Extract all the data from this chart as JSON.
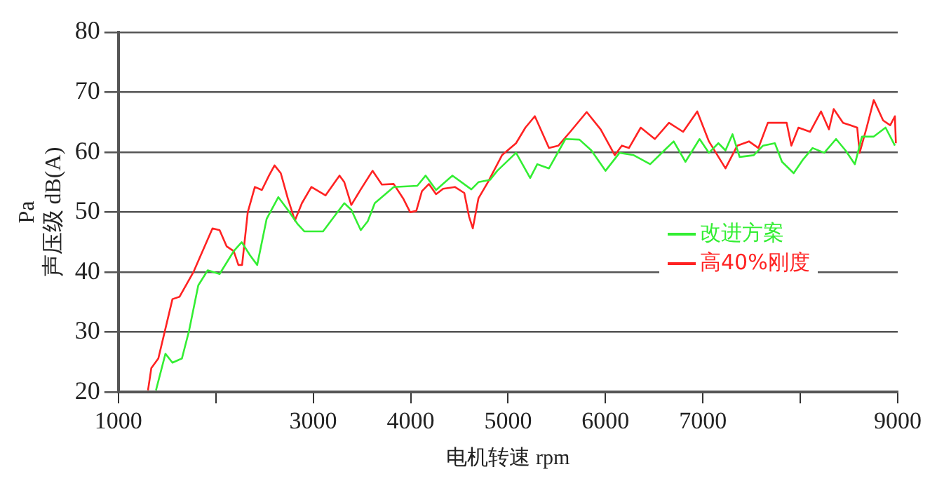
{
  "chart_data": {
    "type": "line",
    "xlabel": "电机转速 rpm",
    "ylabel": "Pa\n声压级 dB(A)",
    "xlim": [
      1000,
      9000
    ],
    "xticks": [
      1000,
      {
        "value": 2000,
        "label": null
      },
      3000,
      4000,
      5000,
      6000,
      7000,
      {
        "value": 8000,
        "label": null
      },
      9000
    ],
    "ylim": [
      20,
      80
    ],
    "yticks": [
      20,
      30,
      40,
      50,
      60,
      70,
      80
    ],
    "grid": "y",
    "legend": "right",
    "marker": "none",
    "line_style": "solid",
    "series": [
      {
        "name": "改进方案",
        "color": "#33ee33",
        "x": [
          1386,
          1483,
          1555,
          1652,
          1725,
          1820,
          1917,
          2039,
          2184,
          2266,
          2352,
          2425,
          2522,
          2642,
          2739,
          2836,
          2908,
          3101,
          3198,
          3319,
          3391,
          3488,
          3560,
          3632,
          3826,
          4068,
          4154,
          4261,
          4429,
          4623,
          4696,
          4816,
          4889,
          5082,
          5227,
          5300,
          5420,
          5589,
          5733,
          5855,
          6000,
          6145,
          6290,
          6459,
          6604,
          6700,
          6821,
          6966,
          7062,
          7159,
          7232,
          7304,
          7377,
          7522,
          7618,
          7739,
          7812,
          7932,
          8029,
          8126,
          8246,
          8367,
          8464,
          8560,
          8633,
          8754,
          8875,
          8971
        ],
        "values": [
          20.3,
          26.4,
          24.9,
          25.6,
          30.2,
          37.8,
          40.3,
          39.7,
          43.5,
          45,
          42.8,
          41.2,
          48.9,
          52.5,
          50.4,
          48.1,
          46.8,
          46.8,
          48.9,
          51.5,
          50.4,
          47,
          48.5,
          51.5,
          54.2,
          54.4,
          56.1,
          53.7,
          56.1,
          53.8,
          55,
          55.4,
          56.9,
          59.9,
          55.7,
          58,
          57.3,
          62.2,
          62.1,
          60.3,
          56.9,
          59.9,
          59.5,
          58,
          60.3,
          61.8,
          58.4,
          62.2,
          59.9,
          61.5,
          60.3,
          63,
          59.2,
          59.5,
          61.1,
          61.5,
          58.4,
          56.5,
          58.8,
          60.7,
          59.9,
          62.2,
          60.3,
          58,
          62.6,
          62.6,
          64.1,
          61.1
        ]
      },
      {
        "name": "高40%刚度",
        "color": "#ff2222",
        "x": [
          1304,
          1338,
          1410,
          1555,
          1628,
          1773,
          1845,
          1966,
          2039,
          2111,
          2184,
          2232,
          2270,
          2328,
          2401,
          2473,
          2546,
          2603,
          2667,
          2739,
          2812,
          2884,
          2981,
          3126,
          3270,
          3319,
          3391,
          3488,
          3609,
          3705,
          3826,
          3923,
          3995,
          4058,
          4116,
          4188,
          4261,
          4333,
          4454,
          4551,
          4599,
          4638,
          4696,
          4793,
          4938,
          5082,
          5178,
          5275,
          5420,
          5517,
          5638,
          5807,
          5951,
          6096,
          6168,
          6241,
          6362,
          6507,
          6652,
          6797,
          6942,
          7062,
          7232,
          7353,
          7473,
          7570,
          7667,
          7860,
          7908,
          7981,
          8101,
          8213,
          8294,
          8343,
          8439,
          8512,
          8584,
          8609,
          8681,
          8754,
          8850,
          8923,
          8971,
          8981
        ],
        "values": [
          20.3,
          24,
          25.6,
          35.5,
          35.9,
          40.1,
          42.8,
          47.3,
          47,
          44.3,
          43.5,
          41.2,
          41.2,
          50,
          54.2,
          53.7,
          56.1,
          57.8,
          56.5,
          52.3,
          48.6,
          51.5,
          54.2,
          52.8,
          56.1,
          55,
          51.2,
          53.8,
          56.9,
          54.6,
          54.7,
          52.3,
          50,
          50.2,
          53.5,
          54.7,
          53,
          53.9,
          54.2,
          53.2,
          49.3,
          47.3,
          52.3,
          55,
          59.5,
          61.5,
          64.1,
          66,
          60.7,
          61.1,
          63.4,
          66.7,
          63.8,
          59.5,
          61.1,
          60.7,
          64.1,
          62.2,
          64.9,
          63.4,
          66.8,
          61.8,
          57.3,
          61.1,
          61.8,
          60.7,
          64.9,
          64.9,
          61.1,
          64.1,
          63.4,
          66.8,
          63.8,
          67.2,
          64.9,
          64.5,
          64.1,
          59.9,
          64.1,
          68.7,
          65.3,
          64.5,
          66,
          61.5
        ]
      }
    ]
  }
}
